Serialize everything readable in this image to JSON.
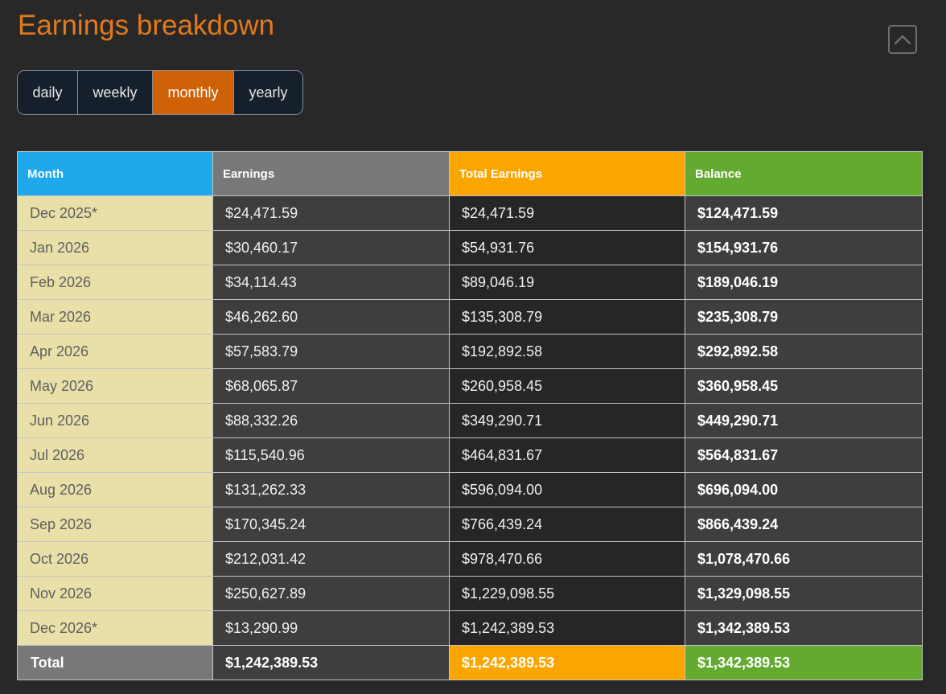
{
  "header": {
    "title": "Earnings breakdown",
    "collapse_icon": "chevron-up-icon"
  },
  "period_tabs": {
    "items": [
      "daily",
      "weekly",
      "monthly",
      "yearly"
    ],
    "active": "monthly"
  },
  "table": {
    "columns": [
      "Month",
      "Earnings",
      "Total Earnings",
      "Balance"
    ],
    "rows": [
      [
        "Dec 2025*",
        "$24,471.59",
        "$24,471.59",
        "$124,471.59"
      ],
      [
        "Jan 2026",
        "$30,460.17",
        "$54,931.76",
        "$154,931.76"
      ],
      [
        "Feb 2026",
        "$34,114.43",
        "$89,046.19",
        "$189,046.19"
      ],
      [
        "Mar 2026",
        "$46,262.60",
        "$135,308.79",
        "$235,308.79"
      ],
      [
        "Apr 2026",
        "$57,583.79",
        "$192,892.58",
        "$292,892.58"
      ],
      [
        "May 2026",
        "$68,065.87",
        "$260,958.45",
        "$360,958.45"
      ],
      [
        "Jun 2026",
        "$88,332.26",
        "$349,290.71",
        "$449,290.71"
      ],
      [
        "Jul 2026",
        "$115,540.96",
        "$464,831.67",
        "$564,831.67"
      ],
      [
        "Aug 2026",
        "$131,262.33",
        "$596,094.00",
        "$696,094.00"
      ],
      [
        "Sep 2026",
        "$170,345.24",
        "$766,439.24",
        "$866,439.24"
      ],
      [
        "Oct 2026",
        "$212,031.42",
        "$978,470.66",
        "$1,078,470.66"
      ],
      [
        "Nov 2026",
        "$250,627.89",
        "$1,229,098.55",
        "$1,329,098.55"
      ],
      [
        "Dec 2026*",
        "$13,290.99",
        "$1,242,389.53",
        "$1,342,389.53"
      ]
    ],
    "total": {
      "label": "Total",
      "earnings": "$1,242,389.53",
      "total_earnings": "$1,242,389.53",
      "balance": "$1,342,389.53"
    }
  },
  "colors": {
    "title": "#e07a1c",
    "active_tab": "#cf6108",
    "month_header": "#1fa8ec",
    "earnings_header": "#787878",
    "total_header": "#fba500",
    "balance_header": "#64aa31",
    "month_cell": "#e8e0a8"
  }
}
